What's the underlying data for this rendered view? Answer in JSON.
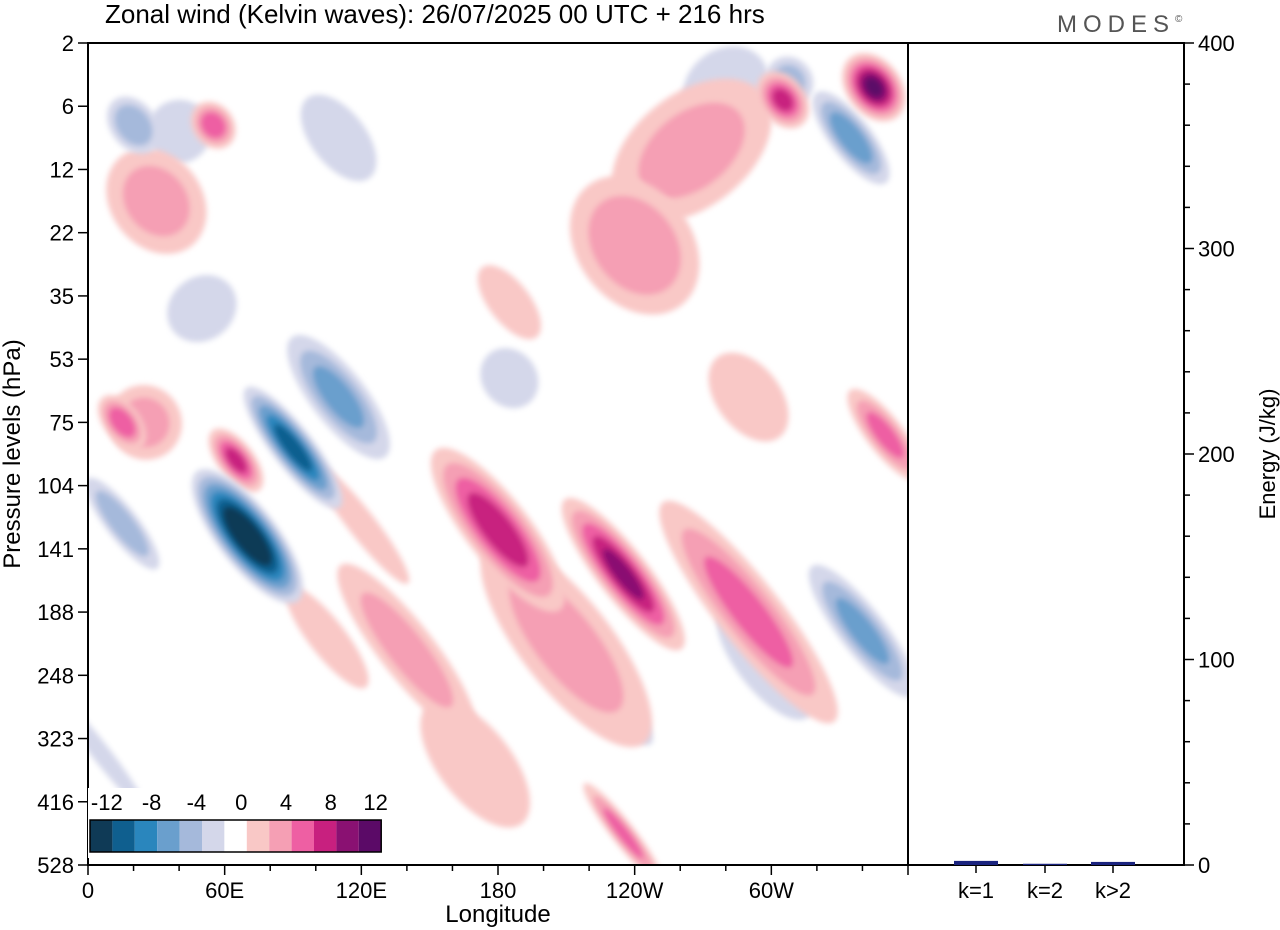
{
  "chart_data": [
    {
      "type": "heatmap",
      "title": "Zonal wind (Kelvin waves):  26/07/2025  00 UTC  + 216 hrs",
      "brand": "MODES",
      "brand_mark": "©",
      "xlabel": "Longitude",
      "ylabel": "Pressure levels (hPa)",
      "x_ticks": [
        "0",
        "60E",
        "120E",
        "180",
        "120W",
        "60W"
      ],
      "x_tick_values": [
        0,
        60,
        120,
        180,
        240,
        300
      ],
      "xlim": [
        0,
        360
      ],
      "y_ticks": [
        "2",
        "6",
        "12",
        "22",
        "35",
        "53",
        "75",
        "104",
        "141",
        "188",
        "248",
        "323",
        "416",
        "528"
      ],
      "colorbar": {
        "labels": [
          "-12",
          "-8",
          "-4",
          "0",
          "4",
          "8",
          "12"
        ],
        "levels": [
          -14,
          -12,
          -10,
          -8,
          -6,
          -4,
          -2,
          2,
          4,
          6,
          8,
          10,
          12,
          14
        ],
        "colors": [
          "#0f3a56",
          "#0f5f8f",
          "#2a86bd",
          "#6a9fcd",
          "#a5b9db",
          "#d4d7ea",
          "#ffffff",
          "#f9c8c6",
          "#f59fb4",
          "#ee5fa3",
          "#c8207f",
          "#8a1172",
          "#5b0a67"
        ]
      },
      "contours": [
        {
          "value": -3,
          "lon": 5,
          "lev": 11.2,
          "wx": 4,
          "wy": 1.2
        },
        {
          "value": -3,
          "lon": 40,
          "lev": 1.4,
          "wx": 14,
          "wy": 0.5
        },
        {
          "value": -3,
          "lon": 50,
          "lev": 4.2,
          "wx": 16,
          "wy": 0.5
        },
        {
          "value": -3,
          "lon": 110,
          "lev": 1.5,
          "wx": 12,
          "wy": 0.8
        },
        {
          "value": -3,
          "lon": 185,
          "lev": 5.3,
          "wx": 12,
          "wy": 0.5
        },
        {
          "value": -3,
          "lon": 230,
          "lev": 10.3,
          "wx": 7,
          "wy": 1.0
        },
        {
          "value": -3,
          "lon": 297,
          "lev": 9.8,
          "wx": 12,
          "wy": 1.1
        },
        {
          "value": -3,
          "lon": 280,
          "lev": 0.7,
          "wx": 20,
          "wy": 0.6
        },
        {
          "value": -4,
          "lon": 308,
          "lev": 0.6,
          "wx": 10,
          "wy": 0.4
        },
        {
          "value": -7,
          "lon": 335,
          "lev": 1.5,
          "wx": 9,
          "wy": 0.9
        },
        {
          "value": -6,
          "lon": 340,
          "lev": 9.3,
          "wx": 10,
          "wy": 1.3
        },
        {
          "value": -5,
          "lon": 15,
          "lev": 7.6,
          "wx": 7,
          "wy": 0.9
        },
        {
          "value": -5,
          "lon": 20,
          "lev": 1.3,
          "wx": 10,
          "wy": 0.5
        },
        {
          "value": -16,
          "lon": 70,
          "lev": 7.8,
          "wx": 13,
          "wy": 1.3
        },
        {
          "value": -11,
          "lon": 90,
          "lev": 6.4,
          "wx": 9,
          "wy": 1.2
        },
        {
          "value": -6,
          "lon": 110,
          "lev": 5.6,
          "wx": 12,
          "wy": 1.2
        },
        {
          "value": 4,
          "lon": 25,
          "lev": 6.0,
          "wx": 16,
          "wy": 0.6
        },
        {
          "value": 4,
          "lon": 30,
          "lev": 2.5,
          "wx": 20,
          "wy": 0.9
        },
        {
          "value": 7,
          "lon": 15,
          "lev": 6.0,
          "wx": 8,
          "wy": 0.5
        },
        {
          "value": 7,
          "lon": 55,
          "lev": 1.3,
          "wx": 9,
          "wy": 0.4
        },
        {
          "value": 8,
          "lon": 65,
          "lev": 6.6,
          "wx": 8,
          "wy": 0.6
        },
        {
          "value": 4,
          "lon": 265,
          "lev": 1.7,
          "wx": 40,
          "wy": 0.9
        },
        {
          "value": 5,
          "lon": 240,
          "lev": 3.2,
          "wx": 25,
          "wy": 1.2
        },
        {
          "value": 3,
          "lon": 185,
          "lev": 4.1,
          "wx": 9,
          "wy": 0.7
        },
        {
          "value": 3,
          "lon": 290,
          "lev": 5.6,
          "wx": 14,
          "wy": 0.8
        },
        {
          "value": 6,
          "lon": 350,
          "lev": 6.2,
          "wx": 8,
          "wy": 0.9
        },
        {
          "value": 12,
          "lon": 345,
          "lev": 0.7,
          "wx": 12,
          "wy": 0.6
        },
        {
          "value": 8,
          "lon": 305,
          "lev": 0.9,
          "wx": 10,
          "wy": 0.5
        },
        {
          "value": 9,
          "lon": 180,
          "lev": 7.7,
          "wx": 14,
          "wy": 1.6
        },
        {
          "value": 10,
          "lon": 235,
          "lev": 8.4,
          "wx": 11,
          "wy": 1.5
        },
        {
          "value": 6,
          "lon": 290,
          "lev": 9.0,
          "wx": 14,
          "wy": 2.2
        },
        {
          "value": 4,
          "lon": 210,
          "lev": 9.5,
          "wx": 20,
          "wy": 2.0
        },
        {
          "value": 4,
          "lon": 140,
          "lev": 9.6,
          "wx": 12,
          "wy": 1.7
        },
        {
          "value": 6,
          "lon": 235,
          "lev": 12.5,
          "wx": 5,
          "wy": 1.0
        },
        {
          "value": 3,
          "lon": 170,
          "lev": 11.4,
          "wx": 16,
          "wy": 1.2
        },
        {
          "value": 3,
          "lon": 105,
          "lev": 9.4,
          "wx": 8,
          "wy": 1.0
        },
        {
          "value": 3,
          "lon": 120,
          "lev": 7.6,
          "wx": 6,
          "wy": 1.2
        }
      ],
      "sidebar": {
        "ylabel": "Energy (J/kg)",
        "ylim": [
          0,
          400
        ],
        "y_ticks": [
          "0",
          "100",
          "200",
          "300",
          "400"
        ],
        "y_tick_values": [
          0,
          100,
          200,
          300,
          400
        ],
        "categories": [
          "k=1",
          "k=2",
          "k>2"
        ],
        "values": [
          2,
          0.6,
          1.5
        ],
        "bar_color": "#1a237e"
      }
    }
  ]
}
